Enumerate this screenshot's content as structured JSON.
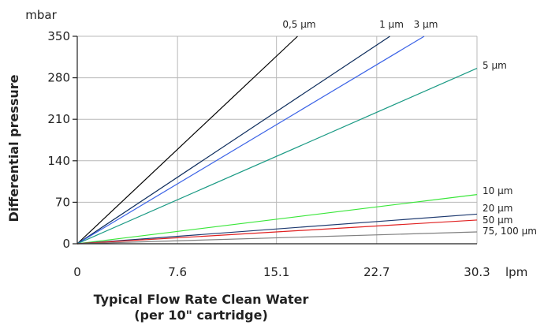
{
  "chart_data": {
    "type": "line",
    "xlabel": "Typical Flow Rate Clean Water",
    "xlabel2": "(per 10\" cartridge)",
    "ylabel": "Differential pressure",
    "xunit": "lpm",
    "yunit": "mbar",
    "xlim": [
      0,
      30.3
    ],
    "ylim": [
      0,
      350
    ],
    "x_ticks": [
      0,
      7.6,
      15.1,
      22.7,
      30.3
    ],
    "y_ticks": [
      0,
      70,
      140,
      210,
      280,
      350
    ],
    "x_tick_labels": [
      "0",
      "7.6",
      "15.1",
      "22.7",
      "30.3"
    ],
    "y_tick_labels": [
      "0",
      "70",
      "140",
      "210",
      "280",
      "350"
    ],
    "grid": true,
    "series": [
      {
        "name": "0,5 µm",
        "color": "#000000",
        "x": [
          0,
          16.7
        ],
        "y": [
          0,
          350
        ]
      },
      {
        "name": "1 µm",
        "color": "#0a2a5a",
        "x": [
          0,
          23.7
        ],
        "y": [
          0,
          350
        ]
      },
      {
        "name": "3 µm",
        "color": "#3a62e6",
        "x": [
          0,
          26.3
        ],
        "y": [
          0,
          350
        ]
      },
      {
        "name": "5 µm",
        "color": "#1a9a84",
        "x": [
          0,
          30.3
        ],
        "y": [
          0,
          296
        ]
      },
      {
        "name": "10 µm",
        "color": "#39e639",
        "x": [
          0,
          30.3
        ],
        "y": [
          0,
          83
        ]
      },
      {
        "name": "20 µm",
        "color": "#1e3a70",
        "x": [
          0,
          30.3
        ],
        "y": [
          0,
          50
        ]
      },
      {
        "name": "50 µm",
        "color": "#e02020",
        "x": [
          0,
          30.3
        ],
        "y": [
          0,
          40
        ]
      },
      {
        "name": "75, 100 µm",
        "color": "#808080",
        "x": [
          0,
          30.3
        ],
        "y": [
          0,
          20
        ]
      }
    ]
  }
}
